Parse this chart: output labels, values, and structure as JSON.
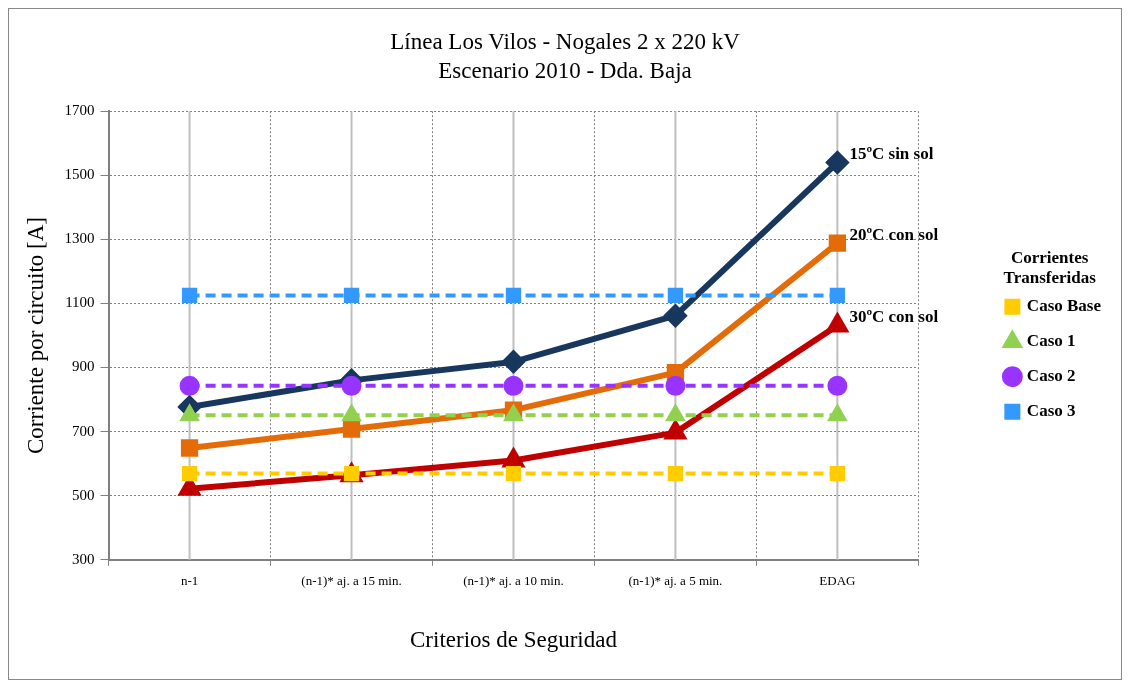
{
  "chart_data": {
    "type": "line",
    "title": "Línea Los Vilos - Nogales 2 x 220 kV",
    "subtitle": "Escenario 2010 - Dda. Baja",
    "xlabel": "Criterios de Seguridad",
    "ylabel": "Corriente por circuito [A]",
    "legend_title": "Corrientes Transferidas",
    "categories": [
      "n-1",
      "(n-1)* aj. a 15 min.",
      "(n-1)* aj. a 10 min.",
      "(n-1)* aj. a 5 min.",
      "EDAG"
    ],
    "series": [
      {
        "name": "15ºC sin sol",
        "color": "#17375e",
        "values": [
          777,
          860,
          918,
          1062,
          1540
        ],
        "marker": "diamond",
        "line_style": "solid"
      },
      {
        "name": "20ºC con sol",
        "color": "#e36c09",
        "values": [
          649,
          708,
          767,
          884,
          1288
        ],
        "marker": "square",
        "line_style": "solid"
      },
      {
        "name": "30ºC con sol",
        "color": "#c00000",
        "values": [
          522,
          564,
          610,
          697,
          1031
        ],
        "marker": "triangle",
        "line_style": "solid"
      },
      {
        "name": "Caso Base",
        "color": "#ffcc00",
        "values": [
          569,
          569,
          569,
          569,
          569
        ],
        "marker": "square",
        "line_style": "dashed"
      },
      {
        "name": "Caso 1",
        "color": "#92d050",
        "values": [
          751,
          751,
          751,
          751,
          751
        ],
        "marker": "triangle",
        "line_style": "dashed"
      },
      {
        "name": "Caso 2",
        "color": "#9933ff",
        "values": [
          843,
          843,
          843,
          843,
          843
        ],
        "marker": "circle",
        "line_style": "dashed"
      },
      {
        "name": "Caso 3",
        "color": "#3399ff",
        "values": [
          1125,
          1125,
          1125,
          1125,
          1125
        ],
        "marker": "square",
        "line_style": "dashed"
      }
    ],
    "ylim": [
      300,
      1700
    ],
    "yticks": [
      300,
      500,
      700,
      900,
      1100,
      1300,
      1500,
      1700
    ],
    "grid": true,
    "legend": "right"
  }
}
